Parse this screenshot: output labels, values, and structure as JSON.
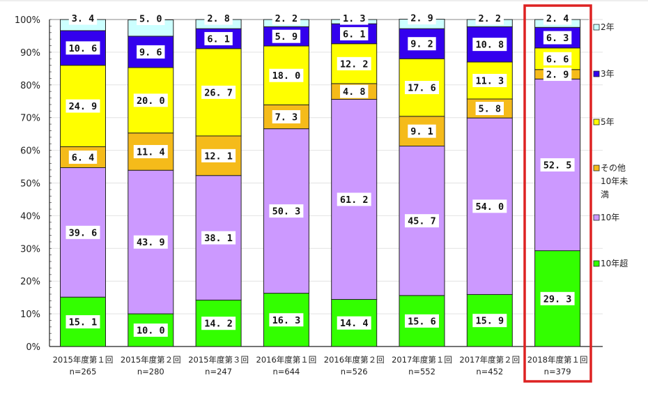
{
  "chart_data": {
    "type": "bar",
    "stacked": true,
    "percent": true,
    "title": "",
    "xlabel": "",
    "ylabel": "",
    "ylim": [
      0,
      100
    ],
    "yticks": [
      "0%",
      "10%",
      "20%",
      "30%",
      "40%",
      "50%",
      "60%",
      "70%",
      "80%",
      "90%",
      "100%"
    ],
    "grid": true,
    "legend_position": "right",
    "categories": [
      {
        "label": "2015年度第１回",
        "n": "n=265"
      },
      {
        "label": "2015年度第２回",
        "n": "n=280"
      },
      {
        "label": "2015年度第３回",
        "n": "n=247"
      },
      {
        "label": "2016年度第１回",
        "n": "n=644"
      },
      {
        "label": "2016年度第２回",
        "n": "n=526"
      },
      {
        "label": "2017年度第１回",
        "n": "n=552"
      },
      {
        "label": "2017年度第２回",
        "n": "n=452"
      },
      {
        "label": "2018年度第１回",
        "n": "n=379"
      }
    ],
    "series": [
      {
        "name": "10年超",
        "color": "#33ff00",
        "values": [
          15.1,
          10.0,
          14.2,
          16.3,
          14.4,
          15.6,
          15.9,
          29.3
        ]
      },
      {
        "name": "10年",
        "color": "#cc99ff",
        "values": [
          39.6,
          43.9,
          38.1,
          50.3,
          61.2,
          45.7,
          54.0,
          52.5
        ]
      },
      {
        "name": "その他10年未満",
        "color": "#f5bb1a",
        "values": [
          6.4,
          11.4,
          12.1,
          7.3,
          4.8,
          9.1,
          5.8,
          2.9
        ]
      },
      {
        "name": "5年",
        "color": "#ffff00",
        "values": [
          24.9,
          20.0,
          26.7,
          18.0,
          12.2,
          17.6,
          11.3,
          6.6
        ]
      },
      {
        "name": "3年",
        "color": "#3300ee",
        "values": [
          10.6,
          9.6,
          6.1,
          5.9,
          6.1,
          9.2,
          10.8,
          6.3
        ]
      },
      {
        "name": "2年",
        "color": "#ccffff",
        "values": [
          3.4,
          5.0,
          2.8,
          2.2,
          1.3,
          2.9,
          2.2,
          2.4
        ]
      }
    ],
    "legend": [
      {
        "lines": [
          "2年"
        ],
        "color": "#ccffff"
      },
      {
        "lines": [
          "3年"
        ],
        "color": "#3300ee"
      },
      {
        "lines": [
          "5年"
        ],
        "color": "#ffff00"
      },
      {
        "lines": [
          "その他",
          "10年未",
          "満"
        ],
        "color": "#f5bb1a"
      },
      {
        "lines": [
          "10年"
        ],
        "color": "#cc99ff"
      },
      {
        "lines": [
          "10年超"
        ],
        "color": "#33ff00"
      }
    ],
    "highlight": {
      "category_index": 7,
      "color": "#dd2222"
    }
  }
}
